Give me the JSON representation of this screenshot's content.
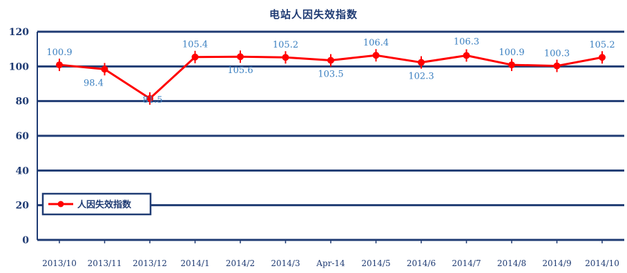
{
  "chart_data": {
    "type": "line",
    "title": "电站人因失效指数",
    "categories": [
      "2013/10",
      "2013/11",
      "2013/12",
      "2014/1",
      "2014/2",
      "2014/3",
      "Apr-14",
      "2014/5",
      "2014/6",
      "2014/7",
      "2014/8",
      "2014/9",
      "2014/10"
    ],
    "series": [
      {
        "name": "人因失效指数",
        "values": [
          100.9,
          98.4,
          81.5,
          105.4,
          105.6,
          105.2,
          103.5,
          106.4,
          102.3,
          106.3,
          100.9,
          100.3,
          105.2
        ],
        "labels": [
          "100.9",
          "98.4",
          "81.5",
          "105.4",
          "105.6",
          "105.2",
          "103.5",
          "106.4",
          "102.3",
          "106.3",
          "100.9",
          "100.3",
          "105.2"
        ]
      }
    ],
    "ylim": [
      0,
      120
    ],
    "yticks": [
      0,
      20,
      40,
      60,
      80,
      100,
      120
    ],
    "ytick_labels": [
      "0",
      "20",
      "40",
      "60",
      "80",
      "100",
      "120"
    ],
    "grid": true,
    "legend_position": "bottom-left",
    "colors": {
      "series": "#ff0000",
      "grid": "#1f3b73",
      "axis_text": "#1f3b73",
      "data_label": "#3a7fc0"
    }
  }
}
